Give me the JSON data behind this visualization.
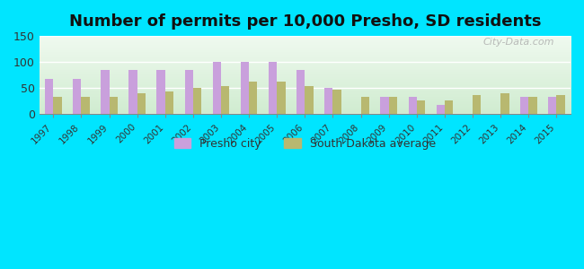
{
  "title": "Number of permits per 10,000 Presho, SD residents",
  "years": [
    1997,
    1998,
    1999,
    2000,
    2001,
    2002,
    2003,
    2004,
    2005,
    2006,
    2007,
    2008,
    2009,
    2010,
    2011,
    2012,
    2013,
    2014,
    2015
  ],
  "presho": [
    67,
    67,
    84,
    84,
    84,
    84,
    100,
    100,
    100,
    84,
    50,
    0,
    33,
    33,
    17,
    0,
    0,
    33,
    33
  ],
  "sd_avg": [
    33,
    33,
    33,
    40,
    44,
    50,
    53,
    63,
    63,
    53,
    47,
    33,
    33,
    27,
    27,
    37,
    40,
    33,
    37
  ],
  "presho_color": "#c9a0dc",
  "sd_avg_color": "#b8b870",
  "outer_background": "#00e5ff",
  "bg_top_color": "#f0faf0",
  "bg_bottom_color": "#d0ecd0",
  "ylim": [
    0,
    150
  ],
  "yticks": [
    0,
    50,
    100,
    150
  ],
  "title_fontsize": 13,
  "legend_labels": [
    "Presho city",
    "South Dakota average"
  ],
  "watermark": "City-Data.com"
}
